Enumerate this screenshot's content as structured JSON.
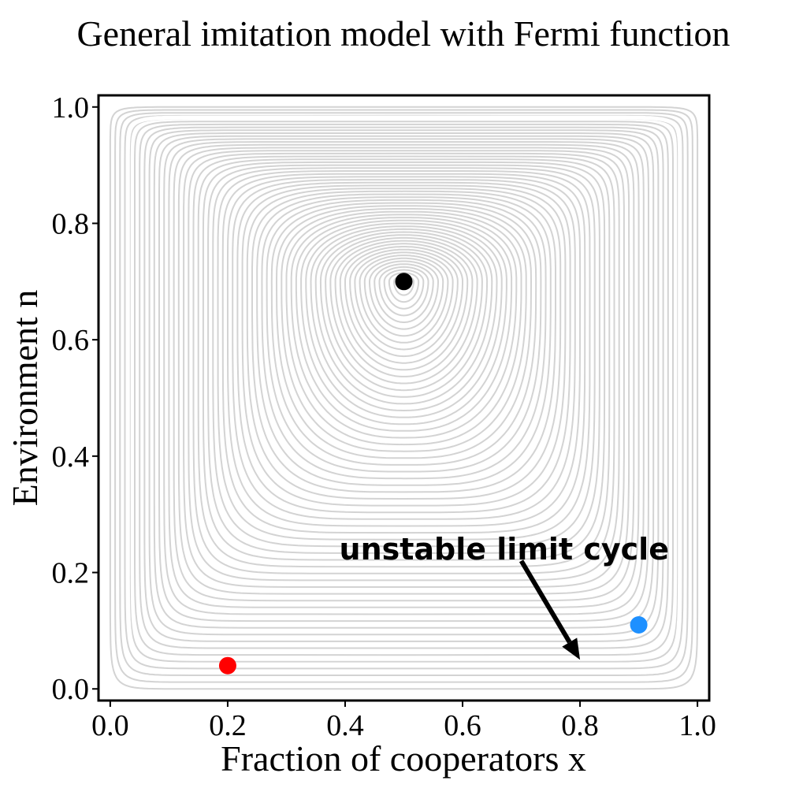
{
  "chart_data": {
    "type": "line",
    "title": "General imitation model with Fermi function",
    "xlabel": "Fraction of cooperators x",
    "ylabel": "Environment n",
    "xlim": [
      -0.02,
      1.02
    ],
    "ylim": [
      -0.02,
      1.02
    ],
    "xticks": [
      0.0,
      0.2,
      0.4,
      0.6,
      0.8,
      1.0
    ],
    "xtick_labels": [
      "0.0",
      "0.2",
      "0.4",
      "0.6",
      "0.8",
      "1.0"
    ],
    "yticks": [
      0.0,
      0.2,
      0.4,
      0.6,
      0.8,
      1.0
    ],
    "ytick_labels": [
      "0.0",
      "0.2",
      "0.4",
      "0.6",
      "0.8",
      "1.0"
    ],
    "grid": false,
    "orbit_color": "#d3d3d3",
    "limit_cycle_color": "#ffffff",
    "center": {
      "x": 0.5,
      "y": 0.7
    },
    "points": [
      {
        "name": "center fixed point",
        "x": 0.5,
        "y": 0.7,
        "color": "#000000"
      },
      {
        "name": "initial condition red",
        "x": 0.2,
        "y": 0.04,
        "color": "#ff0000"
      },
      {
        "name": "initial condition blue",
        "x": 0.9,
        "y": 0.11,
        "color": "#1e90ff"
      }
    ],
    "annotation": {
      "text": "unstable limit cycle",
      "text_x": 0.39,
      "text_y": 0.24,
      "arrow_from": {
        "x": 0.7,
        "y": 0.22
      },
      "arrow_to": {
        "x": 0.8,
        "y": 0.05
      }
    }
  }
}
